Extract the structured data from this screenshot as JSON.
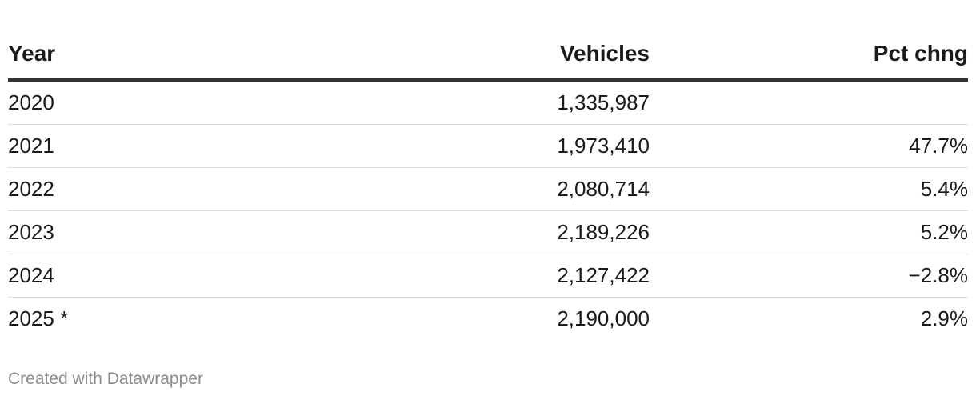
{
  "chart_data": {
    "type": "table",
    "columns": [
      "Year",
      "Vehicles",
      "Pct chng"
    ],
    "rows": [
      {
        "year": "2020",
        "vehicles": "1,335,987",
        "pct": ""
      },
      {
        "year": "2021",
        "vehicles": "1,973,410",
        "pct": "47.7%"
      },
      {
        "year": "2022",
        "vehicles": "2,080,714",
        "pct": "5.4%"
      },
      {
        "year": "2023",
        "vehicles": "2,189,226",
        "pct": "5.2%"
      },
      {
        "year": "2024",
        "vehicles": "2,127,422",
        "pct": "−2.8%"
      },
      {
        "year": "2025 *",
        "vehicles": "2,190,000",
        "pct": "2.9%"
      }
    ],
    "values": {
      "year": [
        "2020",
        "2021",
        "2022",
        "2023",
        "2024",
        "2025"
      ],
      "vehicles": [
        1335987,
        1973410,
        2080714,
        2189226,
        2127422,
        2190000
      ],
      "pct_change": [
        null,
        47.7,
        5.4,
        5.2,
        -2.8,
        2.9
      ]
    }
  },
  "footer": {
    "credit": "Created with Datawrapper"
  }
}
